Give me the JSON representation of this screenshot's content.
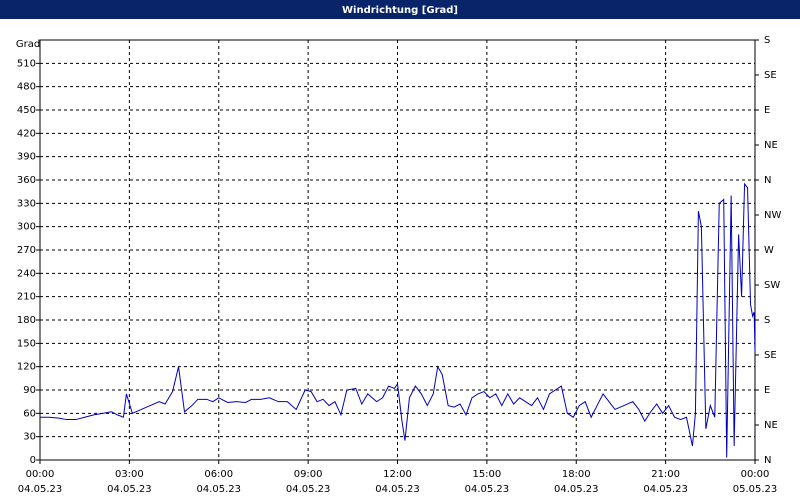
{
  "chart_data": {
    "type": "line",
    "title": "Windrichtung [Grad]",
    "y_label": "Grad",
    "x": [
      0,
      0.3,
      0.6,
      0.9,
      1.2,
      1.5,
      1.8,
      2.1,
      2.4,
      2.6,
      2.8,
      2.9,
      3.1,
      3.4,
      3.7,
      4.0,
      4.2,
      4.45,
      4.65,
      4.85,
      5.1,
      5.3,
      5.6,
      5.8,
      6.0,
      6.3,
      6.6,
      6.9,
      7.1,
      7.4,
      7.7,
      8.0,
      8.3,
      8.6,
      8.9,
      9.1,
      9.3,
      9.5,
      9.7,
      9.9,
      10.1,
      10.3,
      10.6,
      10.8,
      11.0,
      11.3,
      11.5,
      11.7,
      11.9,
      12.0,
      12.15,
      12.25,
      12.4,
      12.6,
      12.8,
      13.0,
      13.2,
      13.35,
      13.5,
      13.7,
      13.9,
      14.1,
      14.3,
      14.5,
      14.7,
      14.9,
      15.1,
      15.3,
      15.5,
      15.7,
      15.9,
      16.1,
      16.3,
      16.5,
      16.7,
      16.9,
      17.1,
      17.3,
      17.5,
      17.7,
      17.9,
      18.1,
      18.3,
      18.5,
      18.7,
      18.9,
      19.1,
      19.3,
      19.6,
      19.9,
      20.1,
      20.3,
      20.5,
      20.7,
      20.9,
      21.1,
      21.3,
      21.5,
      21.7,
      21.9,
      22.0,
      22.1,
      22.2,
      22.35,
      22.5,
      22.65,
      22.8,
      22.95,
      23.05,
      23.2,
      23.3,
      23.45,
      23.55,
      23.65,
      23.75,
      23.85,
      23.92,
      23.97,
      24.0
    ],
    "series": [
      {
        "name": "Windrichtung",
        "color": "#0000c0",
        "values": [
          55,
          55,
          54,
          52,
          52,
          55,
          58,
          60,
          62,
          58,
          55,
          85,
          60,
          65,
          70,
          75,
          72,
          88,
          120,
          62,
          70,
          78,
          78,
          75,
          80,
          74,
          75,
          74,
          78,
          78,
          80,
          75,
          75,
          65,
          90,
          88,
          75,
          78,
          70,
          75,
          58,
          90,
          92,
          72,
          85,
          75,
          80,
          95,
          92,
          98,
          50,
          25,
          80,
          95,
          85,
          70,
          85,
          120,
          110,
          70,
          68,
          72,
          58,
          80,
          85,
          88,
          80,
          85,
          70,
          85,
          72,
          80,
          75,
          70,
          80,
          65,
          85,
          90,
          95,
          60,
          55,
          70,
          75,
          55,
          70,
          85,
          75,
          65,
          70,
          75,
          65,
          50,
          62,
          72,
          60,
          70,
          55,
          52,
          55,
          18,
          60,
          320,
          300,
          40,
          70,
          55,
          330,
          335,
          3,
          340,
          18,
          290,
          210,
          355,
          350,
          200,
          185,
          190,
          140
        ]
      }
    ],
    "xlim": [
      0,
      24
    ],
    "xticks": [
      {
        "value": 0,
        "label": "00:00"
      },
      {
        "value": 3,
        "label": "03:00"
      },
      {
        "value": 6,
        "label": "06:00"
      },
      {
        "value": 9,
        "label": "09:00"
      },
      {
        "value": 12,
        "label": "12:00"
      },
      {
        "value": 15,
        "label": "15:00"
      },
      {
        "value": 18,
        "label": "18:00"
      },
      {
        "value": 21,
        "label": "21:00"
      },
      {
        "value": 24,
        "label": "00:00"
      }
    ],
    "xtick_dates": [
      "04.05.23",
      "04.05.23",
      "04.05.23",
      "04.05.23",
      "04.05.23",
      "04.05.23",
      "04.05.23",
      "04.05.23",
      "05.05.23"
    ],
    "ylim": [
      0,
      540
    ],
    "yticks": [
      0,
      30,
      60,
      90,
      120,
      150,
      180,
      210,
      240,
      270,
      300,
      330,
      360,
      390,
      420,
      450,
      480,
      510
    ],
    "y2lim": [
      0,
      540
    ],
    "y2ticks": [
      {
        "value": 0,
        "label": "N"
      },
      {
        "value": 45,
        "label": "NE"
      },
      {
        "value": 90,
        "label": "E"
      },
      {
        "value": 135,
        "label": "SE"
      },
      {
        "value": 180,
        "label": "S"
      },
      {
        "value": 225,
        "label": "SW"
      },
      {
        "value": 270,
        "label": "W"
      },
      {
        "value": 315,
        "label": "NW"
      },
      {
        "value": 360,
        "label": "N"
      },
      {
        "value": 405,
        "label": "NE"
      },
      {
        "value": 450,
        "label": "E"
      },
      {
        "value": 495,
        "label": "SE"
      },
      {
        "value": 540,
        "label": "S"
      }
    ],
    "grid": true
  }
}
